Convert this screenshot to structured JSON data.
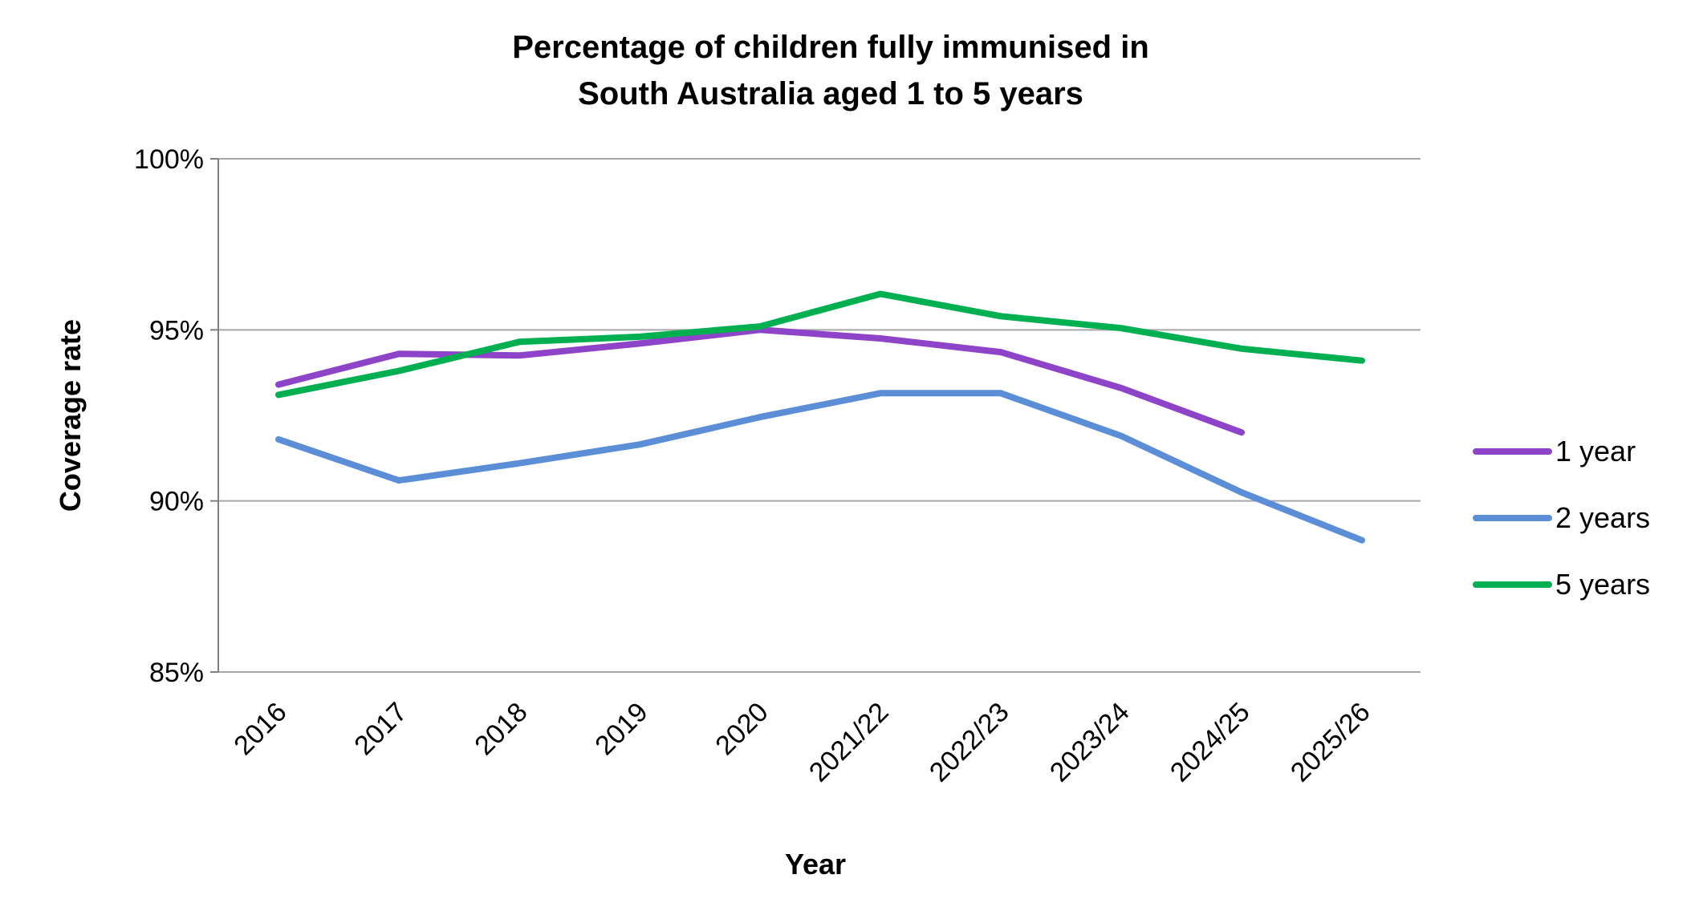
{
  "chart_data": {
    "type": "line",
    "title_lines": [
      "Percentage of children fully immunised in",
      "South Australia aged 1 to 5 years"
    ],
    "xlabel": "Year",
    "ylabel": "Coverage rate",
    "categories": [
      "2016",
      "2017",
      "2018",
      "2019",
      "2020",
      "2021/22",
      "2022/23",
      "2023/24",
      "2024/25",
      "2025/26"
    ],
    "ylim": [
      85,
      100
    ],
    "yticks": [
      85,
      90,
      95,
      100
    ],
    "ytick_labels": [
      "85%",
      "90%",
      "95%",
      "100%"
    ],
    "grid": true,
    "legend_position": "right",
    "series": [
      {
        "name": "1 year",
        "color": "#8E44C8",
        "values": [
          93.4,
          94.3,
          94.25,
          94.6,
          95.0,
          94.75,
          94.35,
          93.3,
          92.0,
          null
        ]
      },
      {
        "name": "2 years",
        "color": "#5B8ED6",
        "values": [
          91.8,
          90.6,
          91.1,
          91.65,
          92.45,
          93.15,
          93.15,
          91.9,
          90.25,
          88.85
        ]
      },
      {
        "name": "5 years",
        "color": "#00B050",
        "values": [
          93.1,
          93.8,
          94.65,
          94.8,
          95.1,
          96.05,
          95.4,
          95.05,
          94.45,
          94.1
        ]
      }
    ]
  }
}
